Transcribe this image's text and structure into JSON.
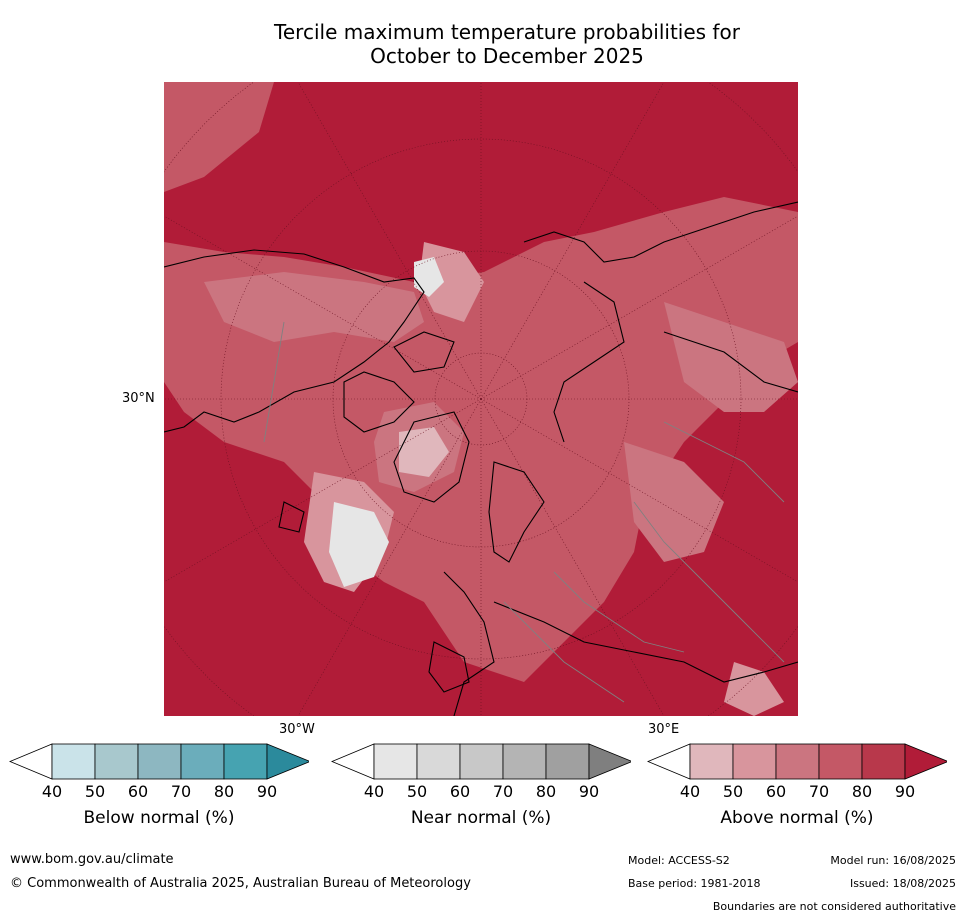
{
  "title": {
    "line1": "Tercile maximum temperature probabilities for",
    "line2": "October to December 2025"
  },
  "map": {
    "projection": "north polar stereographic",
    "labels": {
      "lat_30n": "30°N",
      "lon_30w": "30°W",
      "lon_30e": "30°E"
    },
    "dominant_color": "#b11c38"
  },
  "colorbars": [
    {
      "name": "below",
      "title": "Below normal (%)",
      "ticks": [
        "40",
        "50",
        "60",
        "70",
        "80",
        "90"
      ],
      "colors": [
        "#ffffff",
        "#cae3e9",
        "#a8c8cd",
        "#8db7c1",
        "#6badbb",
        "#46a3b1",
        "#2b8a9c"
      ]
    },
    {
      "name": "near",
      "title": "Near normal (%)",
      "ticks": [
        "40",
        "50",
        "60",
        "70",
        "80",
        "90"
      ],
      "colors": [
        "#ffffff",
        "#e6e6e6",
        "#d9d9d9",
        "#c8c8c8",
        "#b4b4b4",
        "#a0a0a0",
        "#7f7f7f"
      ]
    },
    {
      "name": "above",
      "title": "Above normal (%)",
      "ticks": [
        "40",
        "50",
        "60",
        "70",
        "80",
        "90"
      ],
      "colors": [
        "#ffffff",
        "#e0b7bc",
        "#d8959d",
        "#cb7580",
        "#c45866",
        "#b8384b",
        "#b11c38"
      ]
    }
  ],
  "footer": {
    "website": "www.bom.gov.au/climate",
    "copyright": "© Commonwealth of Australia 2025, Australian Bureau of Meteorology",
    "model": "Model: ACCESS-S2",
    "base_period": "Base period: 1981-2018",
    "model_run": "Model run: 16/08/2025",
    "issued": "Issued: 18/08/2025",
    "disclaimer": "Boundaries are not considered authoritative"
  }
}
